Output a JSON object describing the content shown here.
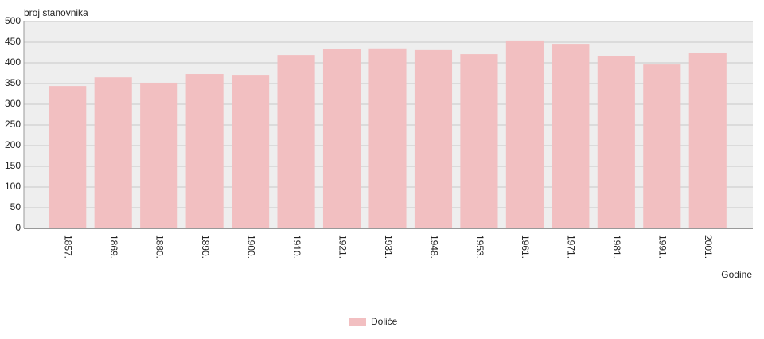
{
  "chart_data": {
    "type": "bar",
    "y_label": "broj stanovnika",
    "x_label": "Godine",
    "categories": [
      "1857.",
      "1869.",
      "1880.",
      "1890.",
      "1900.",
      "1910.",
      "1921.",
      "1931.",
      "1948.",
      "1953.",
      "1961.",
      "1971.",
      "1981.",
      "1991.",
      "2001."
    ],
    "series": [
      {
        "name": "Doliće",
        "color": "#f2bfc1",
        "values": [
          344,
          365,
          352,
          373,
          371,
          419,
          433,
          435,
          431,
          421,
          454,
          446,
          417,
          396,
          425
        ]
      }
    ],
    "ylim": [
      0,
      500
    ],
    "yticks": [
      0,
      50,
      100,
      150,
      200,
      250,
      300,
      350,
      400,
      450,
      500
    ],
    "grid": true
  }
}
